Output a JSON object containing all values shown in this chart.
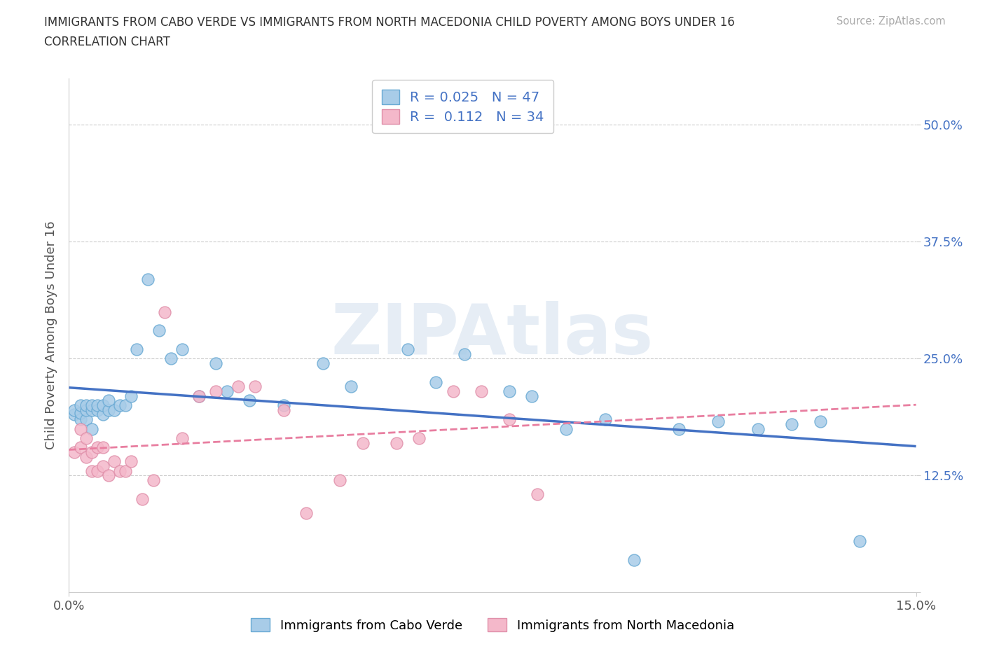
{
  "title_line1": "IMMIGRANTS FROM CABO VERDE VS IMMIGRANTS FROM NORTH MACEDONIA CHILD POVERTY AMONG BOYS UNDER 16",
  "title_line2": "CORRELATION CHART",
  "source": "Source: ZipAtlas.com",
  "ylabel": "Child Poverty Among Boys Under 16",
  "xlim": [
    0.0,
    0.15
  ],
  "ylim": [
    0.0,
    0.55
  ],
  "ytick_vals": [
    0.0,
    0.125,
    0.25,
    0.375,
    0.5
  ],
  "ytick_labels": [
    "",
    "12.5%",
    "25.0%",
    "37.5%",
    "50.0%"
  ],
  "xtick_vals": [
    0.0,
    0.15
  ],
  "xtick_labels": [
    "0.0%",
    "15.0%"
  ],
  "color_blue": "#a8cce8",
  "color_pink": "#f4b8ca",
  "color_blue_edge": "#6aaad4",
  "color_pink_edge": "#e090aa",
  "color_trend_blue": "#4472c4",
  "color_trend_pink": "#e87ea0",
  "color_grid": "#cccccc",
  "color_bg": "#ffffff",
  "color_ytick": "#4472c4",
  "color_title": "#333333",
  "color_source": "#aaaaaa",
  "watermark_text": "ZIPAtlas",
  "legend1_r": "R = 0.025",
  "legend1_n": "N = 47",
  "legend2_r": "R =  0.112",
  "legend2_n": "N = 34",
  "bottom_label1": "Immigrants from Cabo Verde",
  "bottom_label2": "Immigrants from North Macedonia",
  "cabo_x": [
    0.001,
    0.001,
    0.002,
    0.002,
    0.002,
    0.003,
    0.003,
    0.003,
    0.004,
    0.004,
    0.004,
    0.005,
    0.005,
    0.006,
    0.006,
    0.007,
    0.007,
    0.008,
    0.009,
    0.01,
    0.011,
    0.012,
    0.014,
    0.016,
    0.018,
    0.02,
    0.023,
    0.026,
    0.028,
    0.032,
    0.038,
    0.045,
    0.05,
    0.06,
    0.065,
    0.07,
    0.078,
    0.082,
    0.088,
    0.095,
    0.1,
    0.108,
    0.115,
    0.122,
    0.128,
    0.133,
    0.14
  ],
  "cabo_y": [
    0.19,
    0.195,
    0.185,
    0.192,
    0.2,
    0.185,
    0.195,
    0.2,
    0.175,
    0.195,
    0.2,
    0.195,
    0.2,
    0.19,
    0.2,
    0.195,
    0.205,
    0.195,
    0.2,
    0.2,
    0.21,
    0.26,
    0.335,
    0.28,
    0.25,
    0.26,
    0.21,
    0.245,
    0.215,
    0.205,
    0.2,
    0.245,
    0.22,
    0.26,
    0.225,
    0.255,
    0.215,
    0.21,
    0.175,
    0.185,
    0.035,
    0.175,
    0.183,
    0.175,
    0.18,
    0.183,
    0.055
  ],
  "nmac_x": [
    0.001,
    0.002,
    0.002,
    0.003,
    0.003,
    0.004,
    0.004,
    0.005,
    0.005,
    0.006,
    0.006,
    0.007,
    0.008,
    0.009,
    0.01,
    0.011,
    0.013,
    0.015,
    0.017,
    0.02,
    0.023,
    0.026,
    0.03,
    0.033,
    0.038,
    0.042,
    0.048,
    0.052,
    0.058,
    0.062,
    0.068,
    0.073,
    0.078,
    0.083
  ],
  "nmac_y": [
    0.15,
    0.155,
    0.175,
    0.145,
    0.165,
    0.13,
    0.15,
    0.13,
    0.155,
    0.135,
    0.155,
    0.125,
    0.14,
    0.13,
    0.13,
    0.14,
    0.1,
    0.12,
    0.3,
    0.165,
    0.21,
    0.215,
    0.22,
    0.22,
    0.195,
    0.085,
    0.12,
    0.16,
    0.16,
    0.165,
    0.215,
    0.215,
    0.185,
    0.105
  ]
}
